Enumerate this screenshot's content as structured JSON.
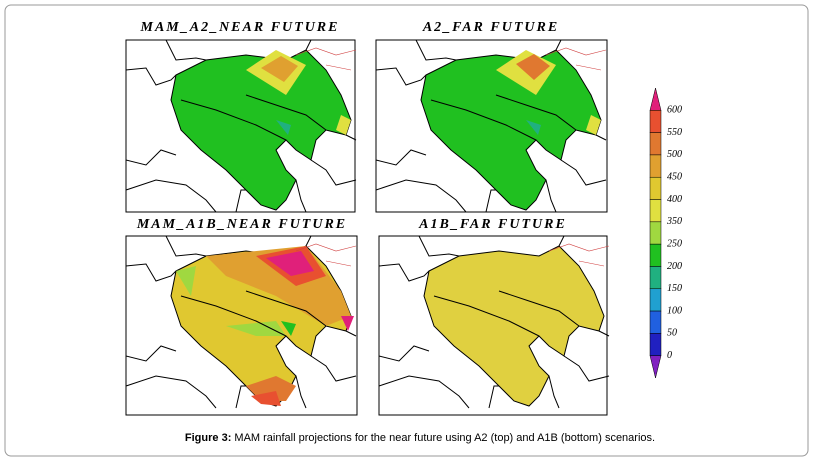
{
  "panels": [
    {
      "title": "MAM_A2_NEAR FUTURE"
    },
    {
      "title": "A2_FAR FUTURE"
    },
    {
      "title": "MAM_A1B_NEAR FUTURE"
    },
    {
      "title": "A1B_FAR FUTURE"
    }
  ],
  "colorbar": {
    "labels": [
      "600",
      "550",
      "500",
      "450",
      "400",
      "350",
      "250",
      "200",
      "150",
      "100",
      "50",
      "0"
    ]
  },
  "caption": {
    "label": "Figure 3:",
    "text": "MAM rainfall projections for the near future using A2 (top) and A1B (bottom) scenarios."
  }
}
